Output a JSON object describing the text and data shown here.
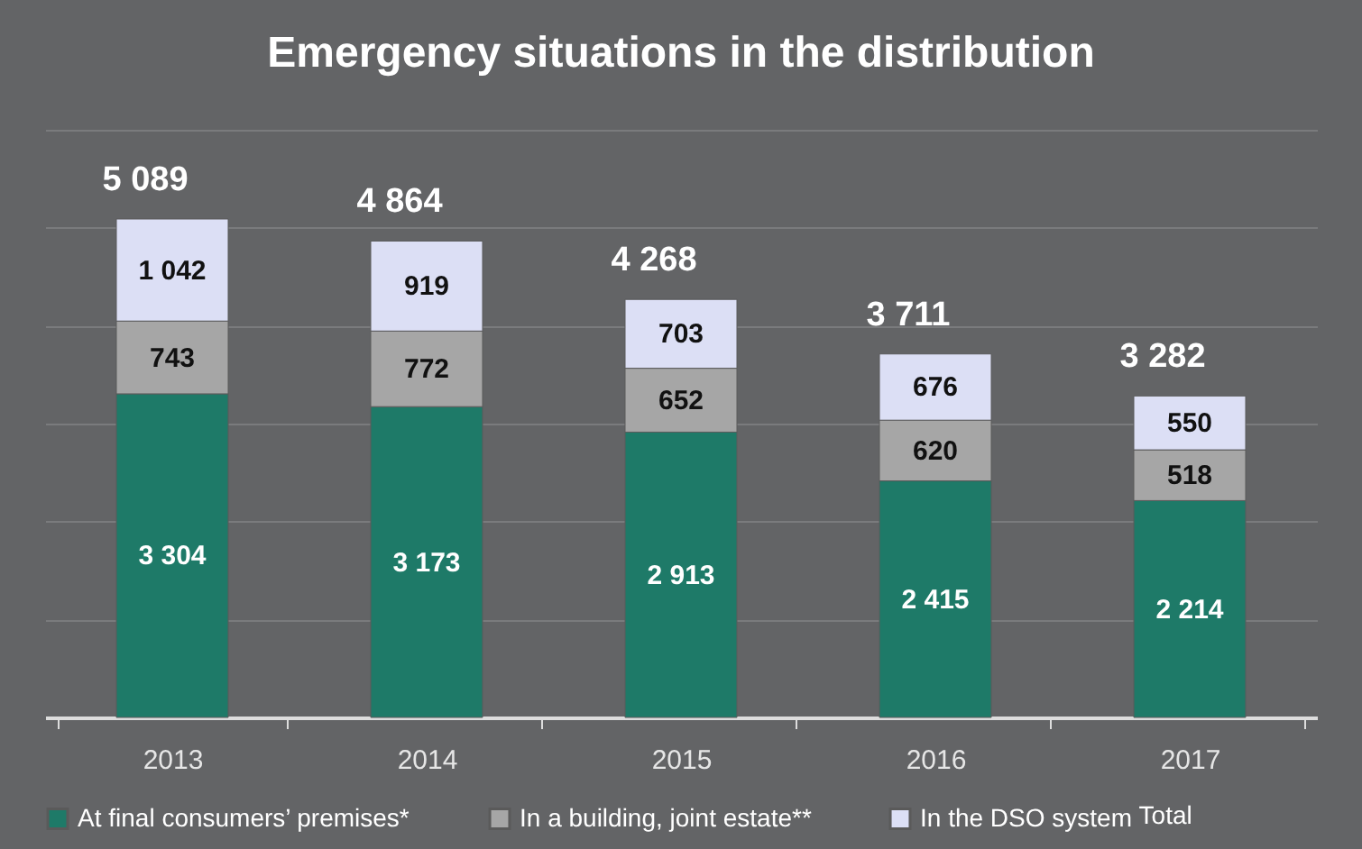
{
  "chart_data": {
    "type": "bar",
    "title": "Emergency situations in the distribution",
    "stacked": true,
    "categories": [
      "2013",
      "2014",
      "2015",
      "2016",
      "2017"
    ],
    "series": [
      {
        "name": "At final consumers’ premises*",
        "color": "#1e7a68",
        "values": [
          3304,
          3173,
          2913,
          2415,
          2214
        ],
        "value_labels": [
          "3 304",
          "3 173",
          "2 913",
          "2 415",
          "2 214"
        ]
      },
      {
        "name": "In a building, joint estate**",
        "color": "#a6a6a6",
        "values": [
          743,
          772,
          652,
          620,
          518
        ],
        "value_labels": [
          "743",
          "772",
          "652",
          "620",
          "518"
        ]
      },
      {
        "name": "In the DSO system",
        "color": "#dcdff5",
        "values": [
          1042,
          919,
          703,
          676,
          550
        ],
        "value_labels": [
          "1 042",
          "919",
          "703",
          "676",
          "550"
        ]
      }
    ],
    "totals": [
      "5 089",
      "4 864",
      "4 268",
      "3 711",
      "3 282"
    ],
    "annotations": [
      "Total"
    ],
    "ylim": [
      0,
      6000
    ],
    "yticks": [
      {
        "value": 0,
        "label": null
      },
      {
        "value": 1000,
        "label": null
      },
      {
        "value": 2000,
        "label": null
      },
      {
        "value": 3000,
        "label": null
      },
      {
        "value": 4000,
        "label": null
      },
      {
        "value": 5000,
        "label": null
      },
      {
        "value": 6000,
        "label": null
      }
    ],
    "tick_labels": "x",
    "grid": "y",
    "legend": "bottom"
  }
}
